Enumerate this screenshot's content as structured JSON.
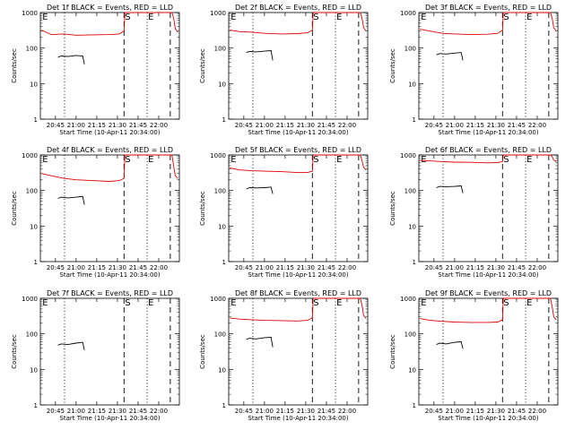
{
  "chart_data": [
    {
      "type": "line",
      "title": "Det 1f BLACK = Events, RED = LLD",
      "ylabel": "Counts/sec",
      "xlabel": "Start Time (10-Apr-11 20:34:00)",
      "y_scale": "log",
      "ylim": [
        1,
        1000
      ],
      "y_ticks": [
        "1",
        "10",
        "100",
        "1000"
      ],
      "x_ticks": [
        "20:45",
        "21:00",
        "21:15",
        "21:30",
        "21:45",
        "22:00"
      ],
      "x_tick_values": [
        20.75,
        21.0,
        21.25,
        21.5,
        21.75,
        22.0
      ],
      "xlim": [
        20.567,
        22.25
      ],
      "markers": [
        {
          "label": "E",
          "x": 20.58,
          "line": "none"
        },
        {
          "label": "",
          "x": 20.86,
          "line": "dotted"
        },
        {
          "label": "S",
          "x": 21.58,
          "line": "dashed"
        },
        {
          "label": "E",
          "x": 21.86,
          "line": "dotted"
        },
        {
          "label": "",
          "x": 22.14,
          "line": "dashed"
        }
      ],
      "series": [
        {
          "color": "#e00000",
          "x": [
            20.58,
            20.7,
            20.85,
            21.0,
            21.2,
            21.4,
            21.52,
            21.58,
            21.59,
            21.6,
            22.16,
            22.18,
            22.2,
            22.23
          ],
          "y": [
            320,
            240,
            250,
            230,
            235,
            240,
            250,
            300,
            1000,
            1000,
            1000,
            700,
            350,
            280
          ]
        },
        {
          "color": "#000000",
          "x": [
            20.78,
            20.82,
            20.9,
            21.0,
            21.08,
            21.1
          ],
          "y": [
            55,
            60,
            58,
            62,
            60,
            35
          ]
        }
      ]
    },
    {
      "type": "line",
      "title": "Det 2f BLACK = Events, RED = LLD",
      "ylabel": "Counts/sec",
      "xlabel": "Start Time (10-Apr-11 20:34:00)",
      "y_scale": "log",
      "ylim": [
        1,
        1000
      ],
      "y_ticks": [
        "1",
        "10",
        "100",
        "1000"
      ],
      "x_ticks": [
        "20:45",
        "21:00",
        "21:15",
        "21:30",
        "21:45",
        "22:00"
      ],
      "x_tick_values": [
        20.75,
        21.0,
        21.25,
        21.5,
        21.75,
        22.0
      ],
      "xlim": [
        20.567,
        22.25
      ],
      "markers": [
        {
          "label": "E",
          "x": 20.58,
          "line": "none"
        },
        {
          "label": "",
          "x": 20.86,
          "line": "dotted"
        },
        {
          "label": "S",
          "x": 21.58,
          "line": "dashed"
        },
        {
          "label": "E",
          "x": 21.86,
          "line": "dotted"
        },
        {
          "label": "",
          "x": 22.14,
          "line": "dashed"
        }
      ],
      "series": [
        {
          "color": "#e00000",
          "x": [
            20.58,
            20.7,
            20.85,
            21.0,
            21.2,
            21.4,
            21.52,
            21.58,
            21.59,
            21.6,
            22.16,
            22.18,
            22.2,
            22.23
          ],
          "y": [
            320,
            290,
            280,
            260,
            250,
            255,
            270,
            320,
            1000,
            1000,
            1000,
            700,
            380,
            300
          ]
        },
        {
          "color": "#000000",
          "x": [
            20.78,
            20.82,
            20.9,
            21.0,
            21.08,
            21.1
          ],
          "y": [
            75,
            80,
            78,
            82,
            85,
            45
          ]
        }
      ]
    },
    {
      "type": "line",
      "title": "Det 3f BLACK = Events, RED = LLD",
      "ylabel": "Counts/sec",
      "xlabel": "Start Time (10-Apr-11 20:34:00)",
      "y_scale": "log",
      "ylim": [
        1,
        1000
      ],
      "y_ticks": [
        "1",
        "10",
        "100",
        "1000"
      ],
      "x_ticks": [
        "20:45",
        "21:00",
        "21:15",
        "21:30",
        "21:45",
        "22:00"
      ],
      "x_tick_values": [
        20.75,
        21.0,
        21.25,
        21.5,
        21.75,
        22.0
      ],
      "xlim": [
        20.567,
        22.25
      ],
      "markers": [
        {
          "label": "E",
          "x": 20.58,
          "line": "none"
        },
        {
          "label": "",
          "x": 20.86,
          "line": "dotted"
        },
        {
          "label": "S",
          "x": 21.58,
          "line": "dashed"
        },
        {
          "label": "E",
          "x": 21.86,
          "line": "dotted"
        },
        {
          "label": "",
          "x": 22.14,
          "line": "dashed"
        }
      ],
      "series": [
        {
          "color": "#e00000",
          "x": [
            20.58,
            20.7,
            20.85,
            21.0,
            21.2,
            21.4,
            21.52,
            21.58,
            21.59,
            21.6,
            22.16,
            22.18,
            22.2,
            22.23
          ],
          "y": [
            340,
            300,
            260,
            250,
            240,
            245,
            260,
            320,
            1000,
            1000,
            1000,
            700,
            380,
            300
          ]
        },
        {
          "color": "#000000",
          "x": [
            20.78,
            20.82,
            20.9,
            21.0,
            21.08,
            21.1
          ],
          "y": [
            65,
            70,
            68,
            72,
            75,
            45
          ]
        }
      ]
    },
    {
      "type": "line",
      "title": "Det 4f BLACK = Events, RED = LLD",
      "ylabel": "Counts/sec",
      "xlabel": "Start Time (10-Apr-11 20:34:00)",
      "y_scale": "log",
      "ylim": [
        1,
        1000
      ],
      "y_ticks": [
        "1",
        "10",
        "100",
        "1000"
      ],
      "x_ticks": [
        "20:45",
        "21:00",
        "21:15",
        "21:30",
        "21:45",
        "22:00"
      ],
      "x_tick_values": [
        20.75,
        21.0,
        21.25,
        21.5,
        21.75,
        22.0
      ],
      "xlim": [
        20.567,
        22.25
      ],
      "markers": [
        {
          "label": "E",
          "x": 20.58,
          "line": "none"
        },
        {
          "label": "",
          "x": 20.86,
          "line": "dotted"
        },
        {
          "label": "S",
          "x": 21.58,
          "line": "dashed"
        },
        {
          "label": "E",
          "x": 21.86,
          "line": "dotted"
        },
        {
          "label": "",
          "x": 22.14,
          "line": "dashed"
        }
      ],
      "series": [
        {
          "color": "#e00000",
          "x": [
            20.58,
            20.7,
            20.85,
            21.0,
            21.2,
            21.4,
            21.52,
            21.58,
            21.59,
            21.6,
            22.16,
            22.18,
            22.2,
            22.23
          ],
          "y": [
            300,
            260,
            220,
            200,
            190,
            180,
            190,
            220,
            1000,
            1000,
            1000,
            500,
            260,
            220
          ]
        },
        {
          "color": "#000000",
          "x": [
            20.78,
            20.82,
            20.9,
            21.0,
            21.08,
            21.1
          ],
          "y": [
            60,
            65,
            62,
            65,
            68,
            40
          ]
        }
      ]
    },
    {
      "type": "line",
      "title": "Det 5f BLACK = Events, RED = LLD",
      "ylabel": "Counts/sec",
      "xlabel": "Start Time (10-Apr-11 20:34:00)",
      "y_scale": "log",
      "ylim": [
        1,
        1000
      ],
      "y_ticks": [
        "1",
        "10",
        "100",
        "1000"
      ],
      "x_ticks": [
        "20:45",
        "21:00",
        "21:15",
        "21:30",
        "21:45",
        "22:00"
      ],
      "x_tick_values": [
        20.75,
        21.0,
        21.25,
        21.5,
        21.75,
        22.0
      ],
      "xlim": [
        20.567,
        22.25
      ],
      "markers": [
        {
          "label": "E",
          "x": 20.58,
          "line": "none"
        },
        {
          "label": "",
          "x": 20.86,
          "line": "dotted"
        },
        {
          "label": "S",
          "x": 21.58,
          "line": "dashed"
        },
        {
          "label": "E",
          "x": 21.86,
          "line": "dotted"
        },
        {
          "label": "",
          "x": 22.14,
          "line": "dashed"
        }
      ],
      "series": [
        {
          "color": "#e00000",
          "x": [
            20.58,
            20.7,
            20.85,
            21.0,
            21.2,
            21.4,
            21.52,
            21.58,
            21.59,
            21.6,
            22.16,
            22.18,
            22.2,
            22.23
          ],
          "y": [
            430,
            380,
            360,
            350,
            340,
            320,
            320,
            350,
            1000,
            1000,
            1000,
            700,
            450,
            380
          ]
        },
        {
          "color": "#000000",
          "x": [
            20.78,
            20.82,
            20.9,
            21.0,
            21.08,
            21.1
          ],
          "y": [
            110,
            120,
            118,
            120,
            125,
            80
          ]
        }
      ]
    },
    {
      "type": "line",
      "title": "Det 6f BLACK = Events, RED = LLD",
      "ylabel": "Counts/sec",
      "xlabel": "Start Time (10-Apr-11 20:34:00)",
      "y_scale": "log",
      "ylim": [
        1,
        1000
      ],
      "y_ticks": [
        "1",
        "10",
        "100",
        "1000"
      ],
      "x_ticks": [
        "20:45",
        "21:00",
        "21:15",
        "21:30",
        "21:45",
        "22:00"
      ],
      "x_tick_values": [
        20.75,
        21.0,
        21.25,
        21.5,
        21.75,
        22.0
      ],
      "xlim": [
        20.567,
        22.25
      ],
      "markers": [
        {
          "label": "E",
          "x": 20.58,
          "line": "none"
        },
        {
          "label": "",
          "x": 20.86,
          "line": "dotted"
        },
        {
          "label": "S",
          "x": 21.58,
          "line": "dashed"
        },
        {
          "label": "E",
          "x": 21.86,
          "line": "dotted"
        },
        {
          "label": "",
          "x": 22.14,
          "line": "dashed"
        }
      ],
      "series": [
        {
          "color": "#e00000",
          "x": [
            20.58,
            20.7,
            20.85,
            21.0,
            21.2,
            21.4,
            21.52,
            21.58,
            21.59,
            21.6,
            22.16,
            22.18,
            22.2,
            22.23
          ],
          "y": [
            700,
            680,
            650,
            630,
            620,
            600,
            610,
            650,
            1000,
            1000,
            1000,
            900,
            720,
            650
          ]
        },
        {
          "color": "#000000",
          "x": [
            20.78,
            20.82,
            20.9,
            21.0,
            21.08,
            21.1
          ],
          "y": [
            120,
            130,
            128,
            130,
            135,
            85
          ]
        }
      ]
    },
    {
      "type": "line",
      "title": "Det 7f BLACK = Events, RED = LLD",
      "ylabel": "Counts/sec",
      "xlabel": "Start Time (10-Apr-11 20:34:00)",
      "y_scale": "log",
      "ylim": [
        1,
        1000
      ],
      "y_ticks": [
        "1",
        "10",
        "100",
        "1000"
      ],
      "x_ticks": [
        "20:45",
        "21:00",
        "21:15",
        "21:30",
        "21:45",
        "22:00"
      ],
      "x_tick_values": [
        20.75,
        21.0,
        21.25,
        21.5,
        21.75,
        22.0
      ],
      "xlim": [
        20.567,
        22.25
      ],
      "markers": [
        {
          "label": "E",
          "x": 20.58,
          "line": "none"
        },
        {
          "label": "",
          "x": 20.86,
          "line": "dotted"
        },
        {
          "label": "S",
          "x": 21.58,
          "line": "dashed"
        },
        {
          "label": "E",
          "x": 21.86,
          "line": "dotted"
        },
        {
          "label": "",
          "x": 22.14,
          "line": "dashed"
        }
      ],
      "series": [
        {
          "color": "#000000",
          "x": [
            20.78,
            20.82,
            20.9,
            21.0,
            21.08,
            21.1
          ],
          "y": [
            48,
            52,
            50,
            55,
            58,
            35
          ]
        }
      ]
    },
    {
      "type": "line",
      "title": "Det 8f BLACK = Events, RED = LLD",
      "ylabel": "Counts/sec",
      "xlabel": "Start Time (10-Apr-11 20:34:00)",
      "y_scale": "log",
      "ylim": [
        1,
        1000
      ],
      "y_ticks": [
        "1",
        "10",
        "100",
        "1000"
      ],
      "x_ticks": [
        "20:45",
        "21:00",
        "21:15",
        "21:30",
        "21:45",
        "22:00"
      ],
      "x_tick_values": [
        20.75,
        21.0,
        21.25,
        21.5,
        21.75,
        22.0
      ],
      "xlim": [
        20.567,
        22.25
      ],
      "markers": [
        {
          "label": "E",
          "x": 20.58,
          "line": "none"
        },
        {
          "label": "",
          "x": 20.86,
          "line": "dotted"
        },
        {
          "label": "S",
          "x": 21.58,
          "line": "dashed"
        },
        {
          "label": "E",
          "x": 21.86,
          "line": "dotted"
        },
        {
          "label": "",
          "x": 22.14,
          "line": "dashed"
        }
      ],
      "series": [
        {
          "color": "#e00000",
          "x": [
            20.58,
            20.7,
            20.85,
            21.0,
            21.2,
            21.4,
            21.52,
            21.58,
            21.59,
            21.6,
            22.16,
            22.18,
            22.2,
            22.23
          ],
          "y": [
            280,
            260,
            250,
            240,
            235,
            230,
            240,
            280,
            1000,
            1000,
            1000,
            650,
            330,
            270
          ]
        },
        {
          "color": "#000000",
          "x": [
            20.78,
            20.82,
            20.9,
            21.0,
            21.08,
            21.1
          ],
          "y": [
            70,
            75,
            72,
            78,
            80,
            42
          ]
        }
      ]
    },
    {
      "type": "line",
      "title": "Det 9f BLACK = Events, RED = LLD",
      "ylabel": "Counts/sec",
      "xlabel": "Start Time (10-Apr-11 20:34:00)",
      "y_scale": "log",
      "ylim": [
        1,
        1000
      ],
      "y_ticks": [
        "1",
        "10",
        "100",
        "1000"
      ],
      "x_ticks": [
        "20:45",
        "21:00",
        "21:15",
        "21:30",
        "21:45",
        "22:00"
      ],
      "x_tick_values": [
        20.75,
        21.0,
        21.25,
        21.5,
        21.75,
        22.0
      ],
      "xlim": [
        20.567,
        22.25
      ],
      "markers": [
        {
          "label": "E",
          "x": 20.58,
          "line": "none"
        },
        {
          "label": "",
          "x": 20.86,
          "line": "dotted"
        },
        {
          "label": "S",
          "x": 21.58,
          "line": "dashed"
        },
        {
          "label": "E",
          "x": 21.86,
          "line": "dotted"
        },
        {
          "label": "",
          "x": 22.14,
          "line": "dashed"
        }
      ],
      "series": [
        {
          "color": "#e00000",
          "x": [
            20.58,
            20.7,
            20.85,
            21.0,
            21.2,
            21.4,
            21.52,
            21.58,
            21.59,
            21.6,
            22.16,
            22.18,
            22.2,
            22.23
          ],
          "y": [
            270,
            240,
            225,
            215,
            210,
            210,
            215,
            250,
            1000,
            1000,
            1000,
            600,
            300,
            250
          ]
        },
        {
          "color": "#000000",
          "x": [
            20.78,
            20.82,
            20.9,
            21.0,
            21.08,
            21.1
          ],
          "y": [
            50,
            55,
            52,
            58,
            60,
            38
          ]
        }
      ]
    }
  ]
}
